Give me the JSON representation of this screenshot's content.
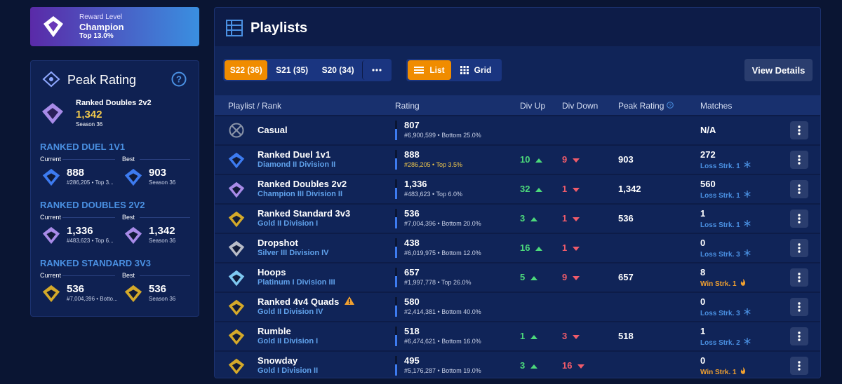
{
  "sidebar": {
    "reward": {
      "label": "Reward Level",
      "level": "Champion",
      "top": "Top 13.0%"
    },
    "peak": {
      "title": "Peak Rating",
      "playlist": "Ranked Doubles 2v2",
      "rating": "1,342",
      "season": "Season 36"
    },
    "sections": [
      {
        "title": "RANKED DUEL 1V1",
        "current_label": "Current",
        "best_label": "Best",
        "current": {
          "rating": "888",
          "detail": "#286,205 • Top 3..."
        },
        "best": {
          "rating": "903",
          "detail": "Season 36"
        },
        "color": "#3d7bf0"
      },
      {
        "title": "RANKED DOUBLES 2V2",
        "current_label": "Current",
        "best_label": "Best",
        "current": {
          "rating": "1,336",
          "detail": "#483,623 • Top 6..."
        },
        "best": {
          "rating": "1,342",
          "detail": "Season 36"
        },
        "color": "#a88be8"
      },
      {
        "title": "RANKED STANDARD 3V3",
        "current_label": "Current",
        "best_label": "Best",
        "current": {
          "rating": "536",
          "detail": "#7,004,396 • Botto..."
        },
        "best": {
          "rating": "536",
          "detail": "Season 36"
        },
        "color": "#d4a92a"
      }
    ]
  },
  "playlists": {
    "title": "Playlists",
    "seasons": [
      "S22 (36)",
      "S21 (35)",
      "S20 (34)"
    ],
    "views": [
      "List",
      "Grid"
    ],
    "details_button": "View Details",
    "columns": [
      "Playlist / Rank",
      "Rating",
      "Div Up",
      "Div Down",
      "Peak Rating",
      "Matches"
    ],
    "rows": [
      {
        "name": "Casual",
        "rating": "807",
        "rank_info": "#6,900,599 • Bottom 25.0%",
        "matches": "N/A",
        "color": "#8a94a8"
      },
      {
        "name": "Ranked Duel 1v1",
        "rank": "Diamond II Division II",
        "rating": "888",
        "rank_info": "#286,205 • Top 3.5%",
        "rank_info_color": "#f2c94c",
        "div_up": "10",
        "div_down": "9",
        "peak": "903",
        "matches": "272",
        "streak": "Loss Strk. 1",
        "color": "#3d7bf0"
      },
      {
        "name": "Ranked Doubles 2v2",
        "rank": "Champion III Division II",
        "rating": "1,336",
        "rank_info": "#483,623 • Top 6.0%",
        "div_up": "32",
        "div_down": "1",
        "peak": "1,342",
        "matches": "560",
        "streak": "Loss Strk. 1",
        "color": "#a88be8"
      },
      {
        "name": "Ranked Standard 3v3",
        "rank": "Gold II Division I",
        "rating": "536",
        "rank_info": "#7,004,396 • Bottom 20.0%",
        "div_up": "3",
        "div_down": "1",
        "peak": "536",
        "matches": "1",
        "streak": "Loss Strk. 1",
        "color": "#d4a92a"
      },
      {
        "name": "Dropshot",
        "rank": "Silver III Division IV",
        "rating": "438",
        "rank_info": "#6,019,975 • Bottom 12.0%",
        "div_up": "16",
        "div_down": "1",
        "matches": "0",
        "streak": "Loss Strk. 3",
        "color": "#b8bcc8"
      },
      {
        "name": "Hoops",
        "rank": "Platinum I Division III",
        "rating": "657",
        "rank_info": "#1,997,778 • Top 26.0%",
        "div_up": "5",
        "div_down": "9",
        "peak": "657",
        "matches": "8",
        "streak": "Win Strk. 1",
        "color": "#7ec8f0"
      },
      {
        "name": "Ranked 4v4 Quads",
        "rank": "Gold II Division IV",
        "rating": "580",
        "rank_info": "#2,414,381 • Bottom 40.0%",
        "matches": "0",
        "streak": "Loss Strk. 3",
        "color": "#d4a92a",
        "warning": true
      },
      {
        "name": "Rumble",
        "rank": "Gold II Division I",
        "rating": "518",
        "rank_info": "#6,474,621 • Bottom 16.0%",
        "div_up": "1",
        "div_down": "3",
        "peak": "518",
        "matches": "1",
        "streak": "Loss Strk. 2",
        "color": "#d4a92a"
      },
      {
        "name": "Snowday",
        "rank": "Gold I Division II",
        "rating": "495",
        "rank_info": "#5,176,287 • Bottom 19.0%",
        "div_up": "3",
        "div_down": "16",
        "matches": "0",
        "streak": "Win Strk. 1",
        "color": "#d4a92a"
      }
    ]
  }
}
